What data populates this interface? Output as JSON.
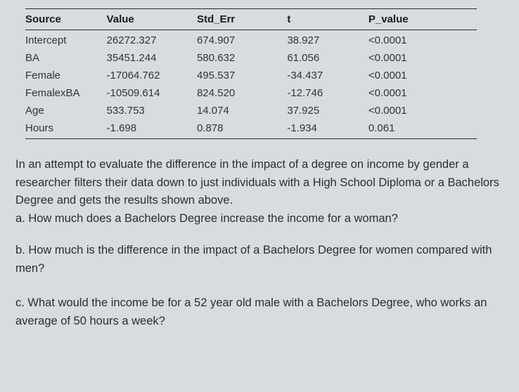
{
  "table": {
    "columns": [
      "Source",
      "Value",
      "Std_Err",
      "t",
      "P_value"
    ],
    "rows": [
      [
        "Intercept",
        "26272.327",
        "674.907",
        "38.927",
        "<0.0001"
      ],
      [
        "BA",
        "35451.244",
        "580.632",
        "61.056",
        "<0.0001"
      ],
      [
        "Female",
        "-17064.762",
        "495.537",
        "-34.437",
        "<0.0001"
      ],
      [
        "FemalexBA",
        "-10509.614",
        "824.520",
        "-12.746",
        "<0.0001"
      ],
      [
        "Age",
        "533.753",
        "14.074",
        "37.925",
        "<0.0001"
      ],
      [
        "Hours",
        "-1.698",
        "0.878",
        "-1.934",
        "0.061"
      ]
    ],
    "border_color": "#2a2a2a",
    "header_fontsize": 15,
    "cell_fontsize": 15,
    "background_color": "#d8dce0"
  },
  "intro_text": "In an attempt to evaluate the difference in the impact of a degree on income by gender a researcher filters their data down to just individuals with a High School Diploma or a Bachelors Degree and gets the results shown above.",
  "question_a": "a. How much does a Bachelors Degree increase the income for a woman?",
  "question_b": "b. How much is the difference in the impact of a Bachelors Degree for women compared with men?",
  "question_c": "c. What would the income be for a 52 year old male with a Bachelors Degree, who works an average of 50 hours a week?",
  "text_color": "#2d2d2d",
  "text_fontsize": 16.5
}
